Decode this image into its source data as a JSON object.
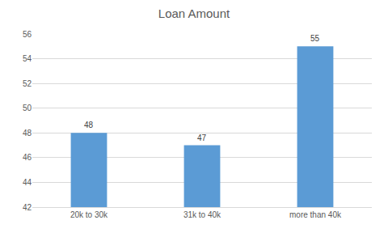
{
  "chart_data": {
    "type": "bar",
    "title": "Loan Amount",
    "categories": [
      "20k to 30k",
      "31k to 40k",
      "more than 40k"
    ],
    "values": [
      48,
      47,
      55
    ],
    "color": "#5b9bd5",
    "ylim": [
      42,
      56
    ],
    "yticks": [
      42,
      44,
      46,
      48,
      50,
      52,
      54,
      56
    ],
    "grid": true,
    "data_labels": true
  }
}
